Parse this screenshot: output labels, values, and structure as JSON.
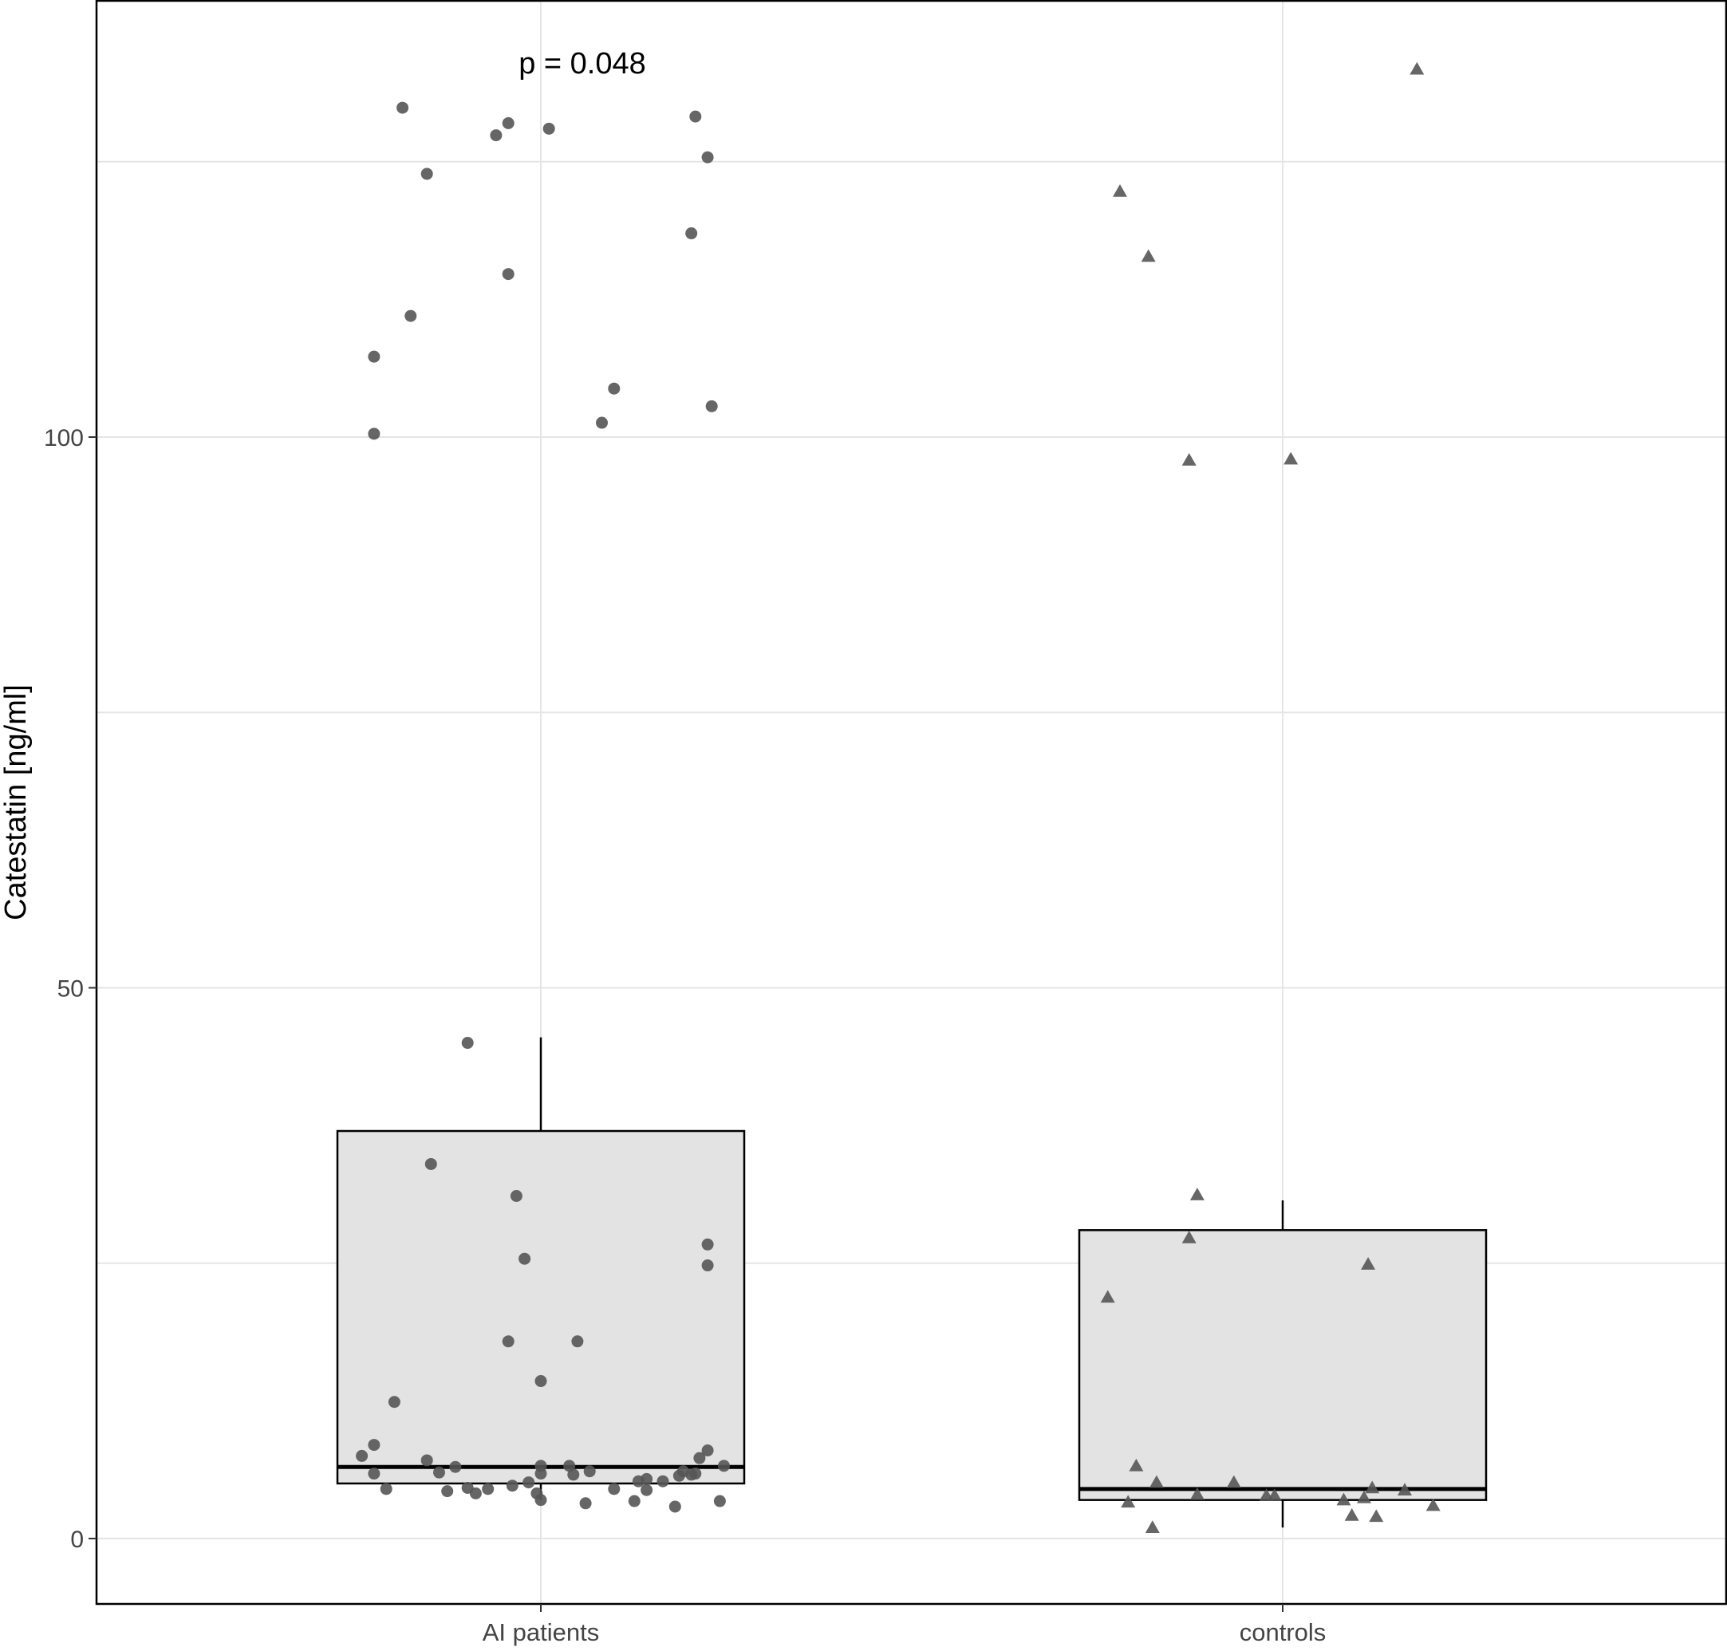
{
  "chart_data": {
    "type": "scatter",
    "subtype": "boxplot-with-jitter",
    "title": "",
    "annotation": "p = 0.048",
    "xlabel": "",
    "ylabel": "Catestatin [ng/ml]",
    "categories": [
      "AI patients",
      "controls"
    ],
    "ylim": [
      -6,
      140
    ],
    "yticks": [
      0,
      50,
      100
    ],
    "grid": true,
    "legend": "none",
    "colors": {
      "points": "#555555",
      "box_fill": "#e3e3e3",
      "box_stroke": "#000000",
      "grid": "#e5e5e5",
      "panel_border": "#000000"
    },
    "boxes": [
      {
        "category": "AI patients",
        "whisker_low": 3.5,
        "q1": 5,
        "median": 6.5,
        "q3": 37,
        "whisker_high": 45.5
      },
      {
        "category": "controls",
        "whisker_low": 1,
        "q1": 3.5,
        "median": 4.5,
        "q3": 28,
        "whisker_high": 30.7
      }
    ],
    "series": [
      {
        "name": "AI patients",
        "marker": "circle",
        "points": [
          {
            "jx": -0.41,
            "y": 100.3
          },
          {
            "jx": -0.41,
            "y": 107.3
          },
          {
            "jx": -0.32,
            "y": 111
          },
          {
            "jx": -0.34,
            "y": 129.9
          },
          {
            "jx": -0.28,
            "y": 123.9
          },
          {
            "jx": -0.11,
            "y": 127.4
          },
          {
            "jx": -0.08,
            "y": 128.5
          },
          {
            "jx": -0.08,
            "y": 114.8
          },
          {
            "jx": 0.02,
            "y": 128
          },
          {
            "jx": 0.15,
            "y": 101.3
          },
          {
            "jx": 0.18,
            "y": 104.4
          },
          {
            "jx": 0.38,
            "y": 129.1
          },
          {
            "jx": 0.41,
            "y": 125.4
          },
          {
            "jx": 0.37,
            "y": 118.5
          },
          {
            "jx": 0.42,
            "y": 102.8
          },
          {
            "jx": -0.18,
            "y": 45
          },
          {
            "jx": -0.27,
            "y": 34
          },
          {
            "jx": -0.06,
            "y": 31.1
          },
          {
            "jx": -0.04,
            "y": 25.4
          },
          {
            "jx": 0.41,
            "y": 26.7
          },
          {
            "jx": 0.41,
            "y": 24.8
          },
          {
            "jx": -0.08,
            "y": 17.9
          },
          {
            "jx": 0.09,
            "y": 17.9
          },
          {
            "jx": 0,
            "y": 14.3
          },
          {
            "jx": -0.36,
            "y": 12.4
          },
          {
            "jx": -0.41,
            "y": 8.5
          },
          {
            "jx": -0.44,
            "y": 7.5
          },
          {
            "jx": -0.28,
            "y": 7.1
          },
          {
            "jx": -0.41,
            "y": 5.9
          },
          {
            "jx": -0.25,
            "y": 6
          },
          {
            "jx": -0.21,
            "y": 6.5
          },
          {
            "jx": -0.38,
            "y": 4.5
          },
          {
            "jx": -0.23,
            "y": 4.3
          },
          {
            "jx": -0.18,
            "y": 4.6
          },
          {
            "jx": -0.16,
            "y": 4.1
          },
          {
            "jx": -0.13,
            "y": 4.5
          },
          {
            "jx": -0.07,
            "y": 4.8
          },
          {
            "jx": -0.03,
            "y": 5.1
          },
          {
            "jx": -0.01,
            "y": 4.1
          },
          {
            "jx": 0,
            "y": 3.5
          },
          {
            "jx": 0,
            "y": 5.9
          },
          {
            "jx": 0,
            "y": 6.6
          },
          {
            "jx": 0.07,
            "y": 6.6
          },
          {
            "jx": 0.08,
            "y": 5.8
          },
          {
            "jx": 0.12,
            "y": 6.1
          },
          {
            "jx": 0.11,
            "y": 3.2
          },
          {
            "jx": 0.18,
            "y": 4.5
          },
          {
            "jx": 0.23,
            "y": 3.4
          },
          {
            "jx": 0.24,
            "y": 5.2
          },
          {
            "jx": 0.26,
            "y": 5.4
          },
          {
            "jx": 0.26,
            "y": 4.4
          },
          {
            "jx": 0.3,
            "y": 5.2
          },
          {
            "jx": 0.33,
            "y": 2.9
          },
          {
            "jx": 0.34,
            "y": 5.7
          },
          {
            "jx": 0.35,
            "y": 6.1
          },
          {
            "jx": 0.37,
            "y": 5.8
          },
          {
            "jx": 0.38,
            "y": 5.9
          },
          {
            "jx": 0.39,
            "y": 7.3
          },
          {
            "jx": 0.41,
            "y": 8
          },
          {
            "jx": 0.44,
            "y": 3.4
          },
          {
            "jx": 0.45,
            "y": 6.6
          }
        ]
      },
      {
        "name": "controls",
        "marker": "triangle",
        "points": [
          {
            "jx": 0.33,
            "y": 133.4
          },
          {
            "jx": -0.4,
            "y": 122.3
          },
          {
            "jx": -0.33,
            "y": 116.4
          },
          {
            "jx": -0.23,
            "y": 97.9
          },
          {
            "jx": 0.02,
            "y": 98
          },
          {
            "jx": -0.21,
            "y": 31.2
          },
          {
            "jx": -0.23,
            "y": 27.3
          },
          {
            "jx": -0.43,
            "y": 21.9
          },
          {
            "jx": 0.21,
            "y": 24.9
          },
          {
            "jx": -0.36,
            "y": 6.6
          },
          {
            "jx": -0.38,
            "y": 3.3
          },
          {
            "jx": -0.31,
            "y": 5.1
          },
          {
            "jx": -0.32,
            "y": 1
          },
          {
            "jx": -0.21,
            "y": 4
          },
          {
            "jx": -0.12,
            "y": 5.1
          },
          {
            "jx": -0.04,
            "y": 3.9
          },
          {
            "jx": -0.02,
            "y": 3.9
          },
          {
            "jx": 0.15,
            "y": 3.5
          },
          {
            "jx": 0.17,
            "y": 2.1
          },
          {
            "jx": 0.2,
            "y": 3.7
          },
          {
            "jx": 0.22,
            "y": 4.6
          },
          {
            "jx": 0.23,
            "y": 2
          },
          {
            "jx": 0.3,
            "y": 4.4
          },
          {
            "jx": 0.37,
            "y": 3
          }
        ]
      }
    ]
  }
}
